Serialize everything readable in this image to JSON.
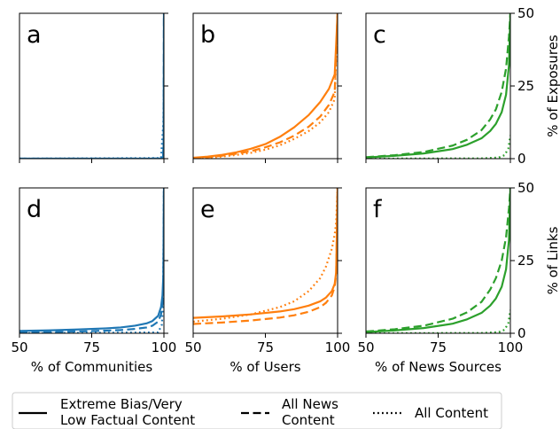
{
  "colors": {
    "Communities": "#1f77b4",
    "Users": "#ff7f0e",
    "News Sources": "#2ca02c"
  },
  "legend": {
    "entries": [
      {
        "style": "solid",
        "lines": [
          "Extreme Bias/Very",
          "Low Factual Content"
        ]
      },
      {
        "style": "dashed",
        "lines": [
          "All News",
          "Content"
        ]
      },
      {
        "style": "dotted",
        "lines": [
          "All Content"
        ]
      }
    ]
  },
  "chart_data": [
    {
      "type": "line",
      "letter": "a",
      "row": 0,
      "col": 0,
      "color_key": "Communities",
      "xlim": [
        50,
        100
      ],
      "ylim": [
        0,
        50
      ],
      "xlabel": "",
      "ylabel": "",
      "xticks": [],
      "yticks": [],
      "series": [
        {
          "style": "solid",
          "x": [
            50,
            90,
            99,
            99.7,
            99.9,
            100
          ],
          "y": [
            0,
            0,
            0.05,
            0.5,
            5,
            50
          ]
        },
        {
          "style": "dashed",
          "x": [
            50,
            90,
            99,
            99.7,
            99.9,
            100
          ],
          "y": [
            0,
            0,
            0.05,
            0.5,
            5,
            50
          ]
        },
        {
          "style": "dotted",
          "x": [
            50,
            99,
            99.8,
            100
          ],
          "y": [
            0,
            0.2,
            12,
            28
          ]
        }
      ]
    },
    {
      "type": "line",
      "letter": "b",
      "row": 0,
      "col": 1,
      "color_key": "Users",
      "xlim": [
        50,
        100
      ],
      "ylim": [
        0,
        50
      ],
      "xlabel": "",
      "ylabel": "",
      "xticks": [],
      "yticks": [],
      "series": [
        {
          "style": "solid",
          "x": [
            50,
            55,
            60,
            65,
            70,
            75,
            80,
            85,
            90,
            94,
            97,
            99,
            100
          ],
          "y": [
            0.3,
            0.7,
            1.3,
            2.2,
            3.4,
            5,
            7.5,
            10.8,
            15,
            19.5,
            24,
            29,
            50
          ]
        },
        {
          "style": "dashed",
          "x": [
            50,
            55,
            60,
            65,
            70,
            75,
            80,
            85,
            90,
            94,
            97,
            99,
            100
          ],
          "y": [
            0.2,
            0.5,
            1,
            1.7,
            2.6,
            3.9,
            5.6,
            7.9,
            11,
            14.5,
            18.5,
            23,
            50
          ]
        },
        {
          "style": "dotted",
          "x": [
            50,
            55,
            60,
            65,
            70,
            75,
            80,
            85,
            90,
            94,
            97,
            99,
            100
          ],
          "y": [
            0.1,
            0.3,
            0.7,
            1.3,
            2,
            3.1,
            4.6,
            6.8,
            9.5,
            12.5,
            16,
            20.5,
            50
          ]
        }
      ]
    },
    {
      "type": "line",
      "letter": "c",
      "row": 0,
      "col": 2,
      "color_key": "News Sources",
      "xlim": [
        50,
        100
      ],
      "ylim": [
        0,
        50
      ],
      "xlabel": "",
      "ylabel": "% of Exposures",
      "xticks": [],
      "yticks": [
        0,
        25,
        50
      ],
      "series": [
        {
          "style": "solid",
          "x": [
            50,
            60,
            70,
            80,
            85,
            90,
            93,
            95,
            97,
            98.5,
            99.5,
            100
          ],
          "y": [
            0.4,
            1,
            1.8,
            3.3,
            4.8,
            7,
            9.5,
            12,
            16,
            22,
            32,
            50
          ]
        },
        {
          "style": "dashed",
          "x": [
            50,
            60,
            70,
            80,
            85,
            90,
            93,
            95,
            97,
            98.5,
            99.5,
            100
          ],
          "y": [
            0.5,
            1.2,
            2.3,
            4.5,
            6.5,
            9.8,
            13.5,
            17,
            23,
            31,
            42,
            50
          ]
        },
        {
          "style": "dotted",
          "x": [
            50,
            90,
            96,
            98,
            99.3,
            100
          ],
          "y": [
            0,
            0.1,
            0.4,
            1.2,
            3.5,
            8
          ]
        }
      ]
    },
    {
      "type": "line",
      "letter": "d",
      "row": 1,
      "col": 0,
      "color_key": "Communities",
      "xlim": [
        50,
        100
      ],
      "ylim": [
        0,
        50
      ],
      "xlabel": "% of Communities",
      "ylabel": "",
      "xticks": [
        50,
        75,
        100
      ],
      "yticks": [],
      "series": [
        {
          "style": "solid",
          "x": [
            50,
            60,
            70,
            80,
            85,
            90,
            94,
            96,
            98,
            99,
            99.5,
            99.8,
            100
          ],
          "y": [
            0.8,
            1,
            1.3,
            1.7,
            2,
            2.6,
            3.4,
            4.2,
            6,
            9,
            13,
            20,
            50
          ]
        },
        {
          "style": "dashed",
          "x": [
            50,
            60,
            70,
            80,
            85,
            90,
            94,
            96,
            98,
            99,
            99.5,
            99.8,
            100
          ],
          "y": [
            0.3,
            0.4,
            0.6,
            0.9,
            1.1,
            1.5,
            2,
            2.6,
            4,
            6.5,
            10,
            16,
            50
          ]
        },
        {
          "style": "dotted",
          "x": [
            50,
            98,
            99.3,
            99.7,
            100
          ],
          "y": [
            0,
            0.3,
            3,
            12,
            50
          ]
        }
      ]
    },
    {
      "type": "line",
      "letter": "e",
      "row": 1,
      "col": 1,
      "color_key": "Users",
      "xlim": [
        50,
        100
      ],
      "ylim": [
        0,
        50
      ],
      "xlabel": "% of Users",
      "ylabel": "",
      "xticks": [
        50,
        75,
        100
      ],
      "yticks": [],
      "series": [
        {
          "style": "solid",
          "x": [
            50,
            60,
            70,
            80,
            85,
            90,
            94,
            96,
            98,
            99,
            99.5,
            100
          ],
          "y": [
            5.3,
            5.8,
            6.5,
            7.5,
            8.3,
            9.5,
            11,
            12.3,
            14.5,
            17,
            21,
            50
          ]
        },
        {
          "style": "dashed",
          "x": [
            50,
            60,
            70,
            80,
            85,
            90,
            94,
            96,
            98,
            99,
            99.5,
            100
          ],
          "y": [
            3.2,
            3.7,
            4.4,
            5.4,
            6.2,
            7.4,
            9,
            10.5,
            13,
            16,
            20,
            50
          ]
        },
        {
          "style": "dotted",
          "x": [
            50,
            60,
            70,
            80,
            85,
            90,
            94,
            96,
            98,
            99,
            99.5,
            100
          ],
          "y": [
            4,
            5,
            6.5,
            9,
            11,
            14.5,
            19,
            23,
            29,
            34,
            38,
            50
          ]
        }
      ]
    },
    {
      "type": "line",
      "letter": "f",
      "row": 1,
      "col": 2,
      "color_key": "News Sources",
      "xlim": [
        50,
        100
      ],
      "ylim": [
        0,
        50
      ],
      "xlabel": "% of News Sources",
      "ylabel": "% of Links",
      "xticks": [
        50,
        75,
        100
      ],
      "yticks": [
        0,
        25,
        50
      ],
      "series": [
        {
          "style": "solid",
          "x": [
            50,
            60,
            70,
            80,
            85,
            90,
            93,
            95,
            97,
            98.5,
            99.5,
            100
          ],
          "y": [
            0.4,
            1,
            1.8,
            3.3,
            4.8,
            7,
            9.5,
            12,
            16,
            22,
            32,
            50
          ]
        },
        {
          "style": "dashed",
          "x": [
            50,
            60,
            70,
            80,
            85,
            90,
            93,
            95,
            97,
            98.5,
            99.5,
            100
          ],
          "y": [
            0.6,
            1.4,
            2.6,
            5,
            7.2,
            10.8,
            15,
            19,
            25,
            33,
            43,
            50
          ]
        },
        {
          "style": "dotted",
          "x": [
            50,
            90,
            96,
            98,
            99.3,
            100
          ],
          "y": [
            0,
            0.1,
            0.4,
            1.2,
            3.5,
            8
          ]
        }
      ]
    }
  ]
}
